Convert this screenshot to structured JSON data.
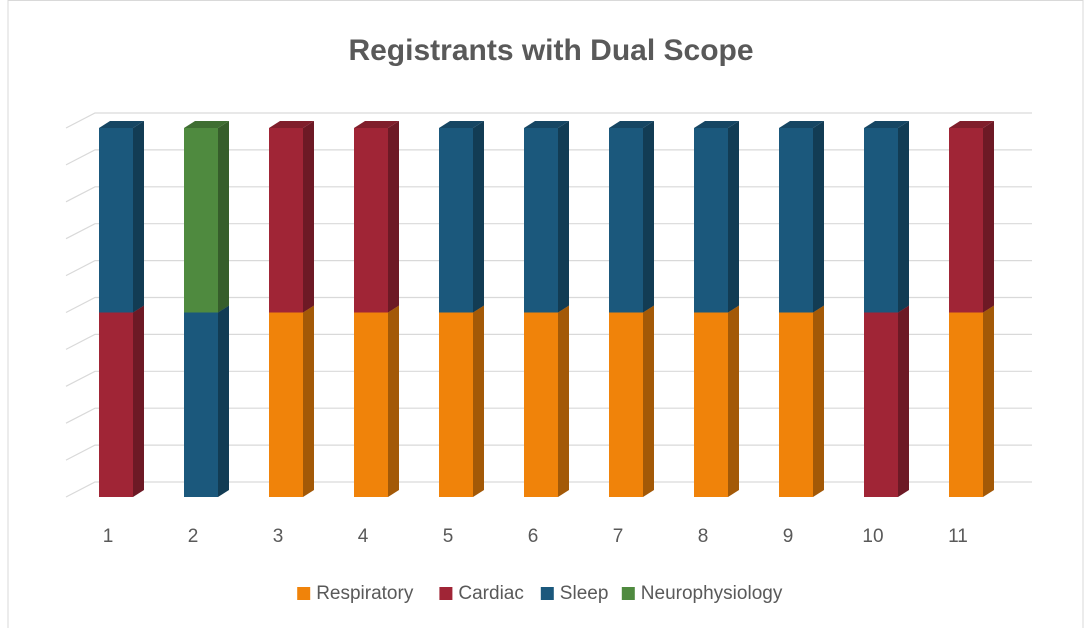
{
  "chart_data": {
    "type": "bar3d-stacked",
    "title": "Registrants with Dual Scope",
    "categories": [
      "1",
      "2",
      "3",
      "4",
      "5",
      "6",
      "7",
      "8",
      "9",
      "10",
      "11"
    ],
    "series": [
      {
        "name": "Respiratory",
        "color": "#f0830a",
        "values": [
          null,
          null,
          1,
          1,
          1,
          1,
          1,
          1,
          1,
          null,
          1
        ]
      },
      {
        "name": "Cardiac",
        "color": "#a02536",
        "values": [
          1,
          null,
          1,
          1,
          null,
          null,
          null,
          null,
          null,
          1,
          1
        ]
      },
      {
        "name": "Sleep",
        "color": "#1b587c",
        "values": [
          1,
          1,
          null,
          null,
          1,
          1,
          1,
          1,
          1,
          1,
          null
        ]
      },
      {
        "name": "Neurophysiology",
        "color": "#4f8a3f",
        "values": [
          null,
          1,
          null,
          null,
          null,
          null,
          null,
          null,
          null,
          null,
          null
        ]
      }
    ],
    "ylim": [
      0,
      2
    ],
    "yticks": [
      0,
      0.2,
      0.4,
      0.6,
      0.8,
      1,
      1.2,
      1.4,
      1.6,
      1.8,
      2
    ],
    "grid": true,
    "legend": "bottom"
  }
}
